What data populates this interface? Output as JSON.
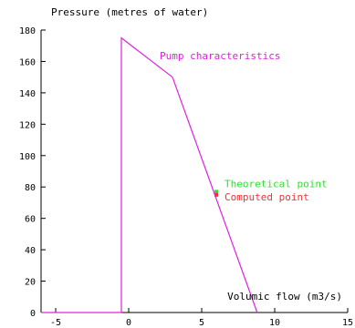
{
  "chart_data": {
    "type": "line",
    "ylabel": "Pressure (metres of water)",
    "xlabel": "Volumic flow (m3/s)",
    "xlim": [
      -6,
      15
    ],
    "ylim": [
      0,
      180
    ],
    "x_ticks": [
      -5,
      0,
      5,
      10,
      15
    ],
    "y_ticks": [
      0,
      20,
      40,
      60,
      80,
      100,
      120,
      140,
      160,
      180
    ],
    "grid": false,
    "series": [
      {
        "name": "Pump characteristics",
        "color": "#e020e0",
        "x": [
          -6,
          -0.5,
          -0.5,
          3,
          8.8
        ],
        "y": [
          0,
          0,
          175,
          150,
          0
        ]
      }
    ],
    "points": [
      {
        "name": "Theoretical point",
        "x": 6,
        "y": 77,
        "color": "#33dd33"
      },
      {
        "name": "Computed point",
        "x": 6,
        "y": 75,
        "color": "#ee3333"
      }
    ],
    "axis_color": "#000000"
  }
}
